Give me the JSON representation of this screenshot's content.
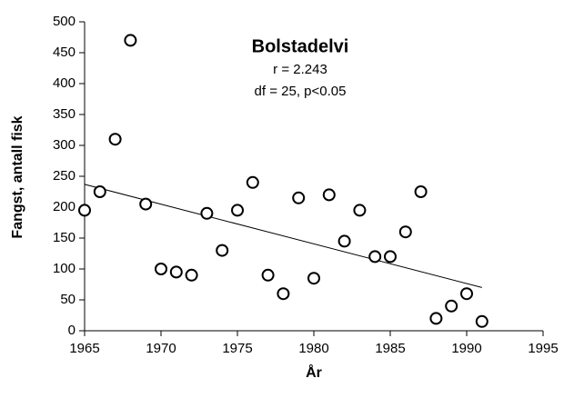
{
  "chart_data": {
    "type": "scatter",
    "title": "Bolstadelvi",
    "annotations": [
      "r = 2.243",
      "df = 25, p<0.05"
    ],
    "x_label": "År",
    "y_label": "Fangst, antall fisk",
    "x": [
      1965,
      1966,
      1967,
      1968,
      1969,
      1970,
      1971,
      1972,
      1973,
      1974,
      1975,
      1976,
      1977,
      1978,
      1979,
      1980,
      1981,
      1982,
      1983,
      1984,
      1985,
      1986,
      1987,
      1988,
      1989,
      1990,
      1991
    ],
    "values": [
      195,
      225,
      310,
      470,
      205,
      100,
      95,
      90,
      190,
      130,
      195,
      240,
      90,
      60,
      215,
      85,
      220,
      145,
      195,
      120,
      120,
      160,
      225,
      20,
      40,
      60,
      15
    ],
    "color": "#000000",
    "trend": {
      "x": [
        1965,
        1991
      ],
      "values": [
        237,
        70
      ]
    },
    "xlim": [
      1965,
      1995
    ],
    "xticks": [
      1965,
      1970,
      1975,
      1980,
      1985,
      1990,
      1995
    ],
    "ylim": [
      0,
      500
    ],
    "yticks": [
      0,
      50,
      100,
      150,
      200,
      250,
      300,
      350,
      400,
      450,
      500
    ]
  }
}
